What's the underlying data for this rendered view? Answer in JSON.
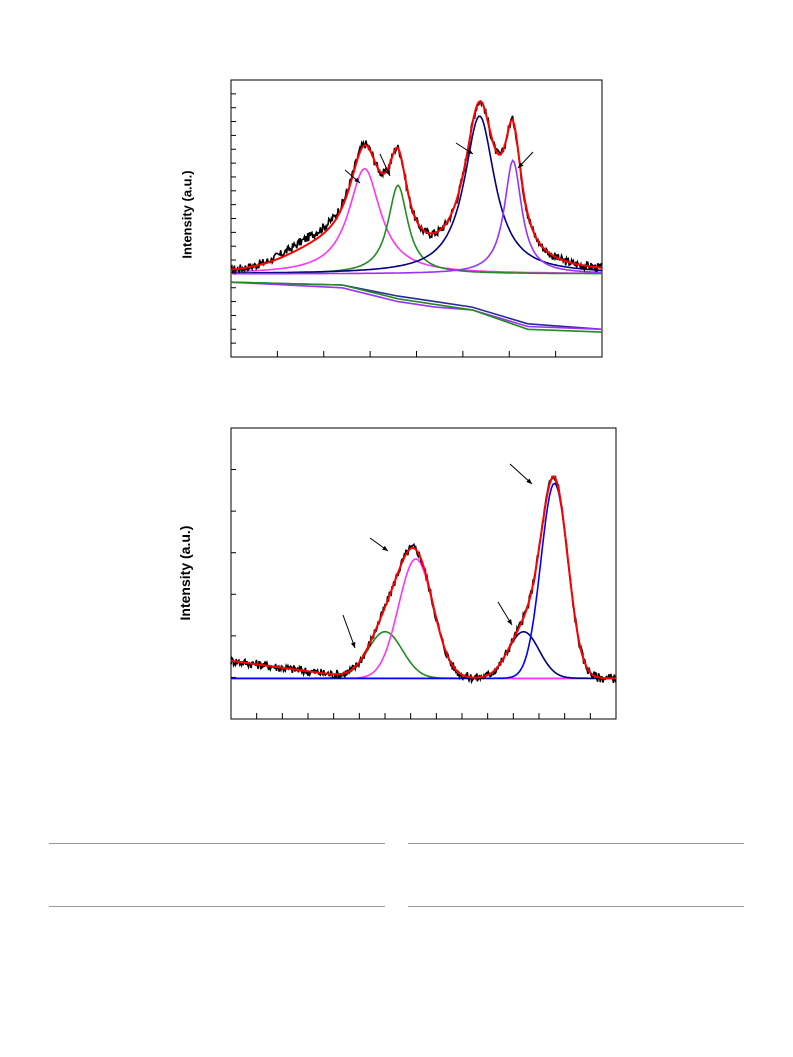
{
  "chart_data": [
    {
      "type": "line",
      "ylabel": "Intensity (a.u.)",
      "xlabel": "",
      "x_ticks": 8,
      "x_minor_ticks": 16,
      "y_ticks": 20,
      "grid": false,
      "xlim": [
        0,
        100
      ],
      "ylim": [
        0,
        100
      ],
      "baseline_y": 30,
      "colors": {
        "data": "#000000",
        "fit": "#ff0000"
      },
      "components": [
        {
          "color": "#ff33ff",
          "center": 36,
          "width": 5.2,
          "height": 38
        },
        {
          "color": "#228b22",
          "center": 45,
          "width": 3.2,
          "height": 32
        },
        {
          "color": "#000080",
          "center": 67,
          "width": 5.0,
          "height": 57
        },
        {
          "color": "#9933ff",
          "center": 76,
          "width": 2.8,
          "height": 41
        }
      ],
      "backgrounds": [
        {
          "color": "#2a2aa0",
          "points": [
            [
              0,
              27
            ],
            [
              30,
              26
            ],
            [
              45,
              22
            ],
            [
              55,
              20
            ],
            [
              65,
              18
            ],
            [
              80,
              12
            ],
            [
              100,
              10
            ]
          ]
        },
        {
          "color": "#9933ff",
          "points": [
            [
              0,
              27
            ],
            [
              30,
              25
            ],
            [
              45,
              20
            ],
            [
              55,
              18
            ],
            [
              65,
              17
            ],
            [
              80,
              11
            ],
            [
              100,
              10
            ]
          ]
        },
        {
          "color": "#228b22",
          "points": [
            [
              0,
              27
            ],
            [
              30,
              26
            ],
            [
              45,
              21
            ],
            [
              55,
              19
            ],
            [
              65,
              17
            ],
            [
              80,
              10
            ],
            [
              100,
              9
            ]
          ]
        }
      ],
      "annotation_arrows": 4
    },
    {
      "type": "line",
      "ylabel": "Intensity (a.u.)",
      "xlabel": "",
      "x_ticks": 15,
      "x_minor_ticks": 15,
      "y_ticks": 7,
      "grid": false,
      "xlim": [
        0,
        100
      ],
      "ylim": [
        0,
        100
      ],
      "baseline_y": 14,
      "colors": {
        "data": "#000000",
        "fit": "#ff0000"
      },
      "components": [
        {
          "color": "#228b22",
          "center": 40,
          "width": 4.5,
          "height": 16
        },
        {
          "color": "#ff33ff",
          "center": 48,
          "width": 4.5,
          "height": 41
        },
        {
          "color": "#000080",
          "center": 76,
          "width": 4.0,
          "height": 16
        },
        {
          "color": "#0000ff",
          "center": 84,
          "width": 3.5,
          "height": 67
        }
      ],
      "backgrounds": [
        {
          "color": "#000080",
          "points": [
            [
              0,
              14
            ],
            [
              100,
              14
            ]
          ]
        }
      ],
      "annotation_arrows": 4
    }
  ]
}
